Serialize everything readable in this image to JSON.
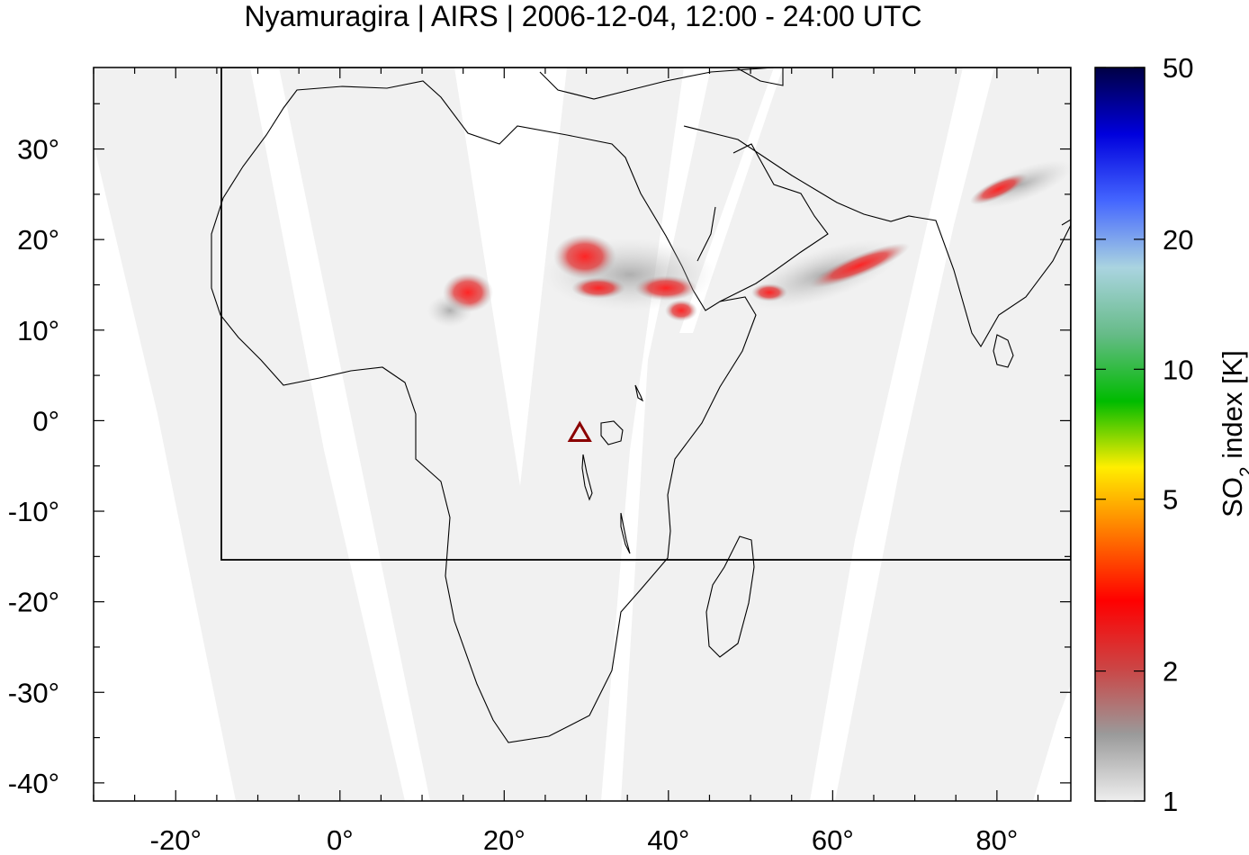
{
  "title": "Nyamuragira | AIRS | 2006-12-04, 12:00 - 24:00 UTC",
  "map": {
    "lon_range": [
      -30,
      89
    ],
    "lat_range": [
      -42,
      39
    ],
    "x_ticks": [
      -20,
      0,
      20,
      40,
      60,
      80
    ],
    "x_tick_labels": [
      "-20°",
      "0°",
      "20°",
      "40°",
      "60°",
      "80°"
    ],
    "y_ticks": [
      30,
      20,
      10,
      0,
      -10,
      -20,
      -30,
      -40
    ],
    "y_tick_labels": [
      "30°",
      "20°",
      "10°",
      "0°",
      "-10°",
      "-20°",
      "-30°",
      "-40°"
    ],
    "volcano": {
      "name": "Nyamuragira",
      "lon": 29.2,
      "lat": -1.4,
      "marker": "triangle-icon",
      "color": "#8b0000"
    },
    "subregion_box": {
      "lon": [
        -14.5,
        89
      ],
      "lat": [
        -15,
        39
      ]
    },
    "swath_color": "#f1f1f1",
    "gap_color": "#ffffff"
  },
  "colorbar": {
    "label_main": "SO",
    "label_sub": "2",
    "label_rest": " index [K]",
    "scale": "log",
    "range": [
      1,
      50
    ],
    "ticks": [
      1,
      2,
      5,
      10,
      20,
      50
    ],
    "tick_labels": [
      "1",
      "2",
      "5",
      "10",
      "20",
      "50"
    ],
    "colors": [
      "#eeeeee",
      "#9a9a9a",
      "#cc4444",
      "#ff0000",
      "#ff7700",
      "#ffee00",
      "#00bb00",
      "#66bb88",
      "#aad4e0",
      "#4466ff",
      "#0000dd",
      "#000044"
    ]
  }
}
